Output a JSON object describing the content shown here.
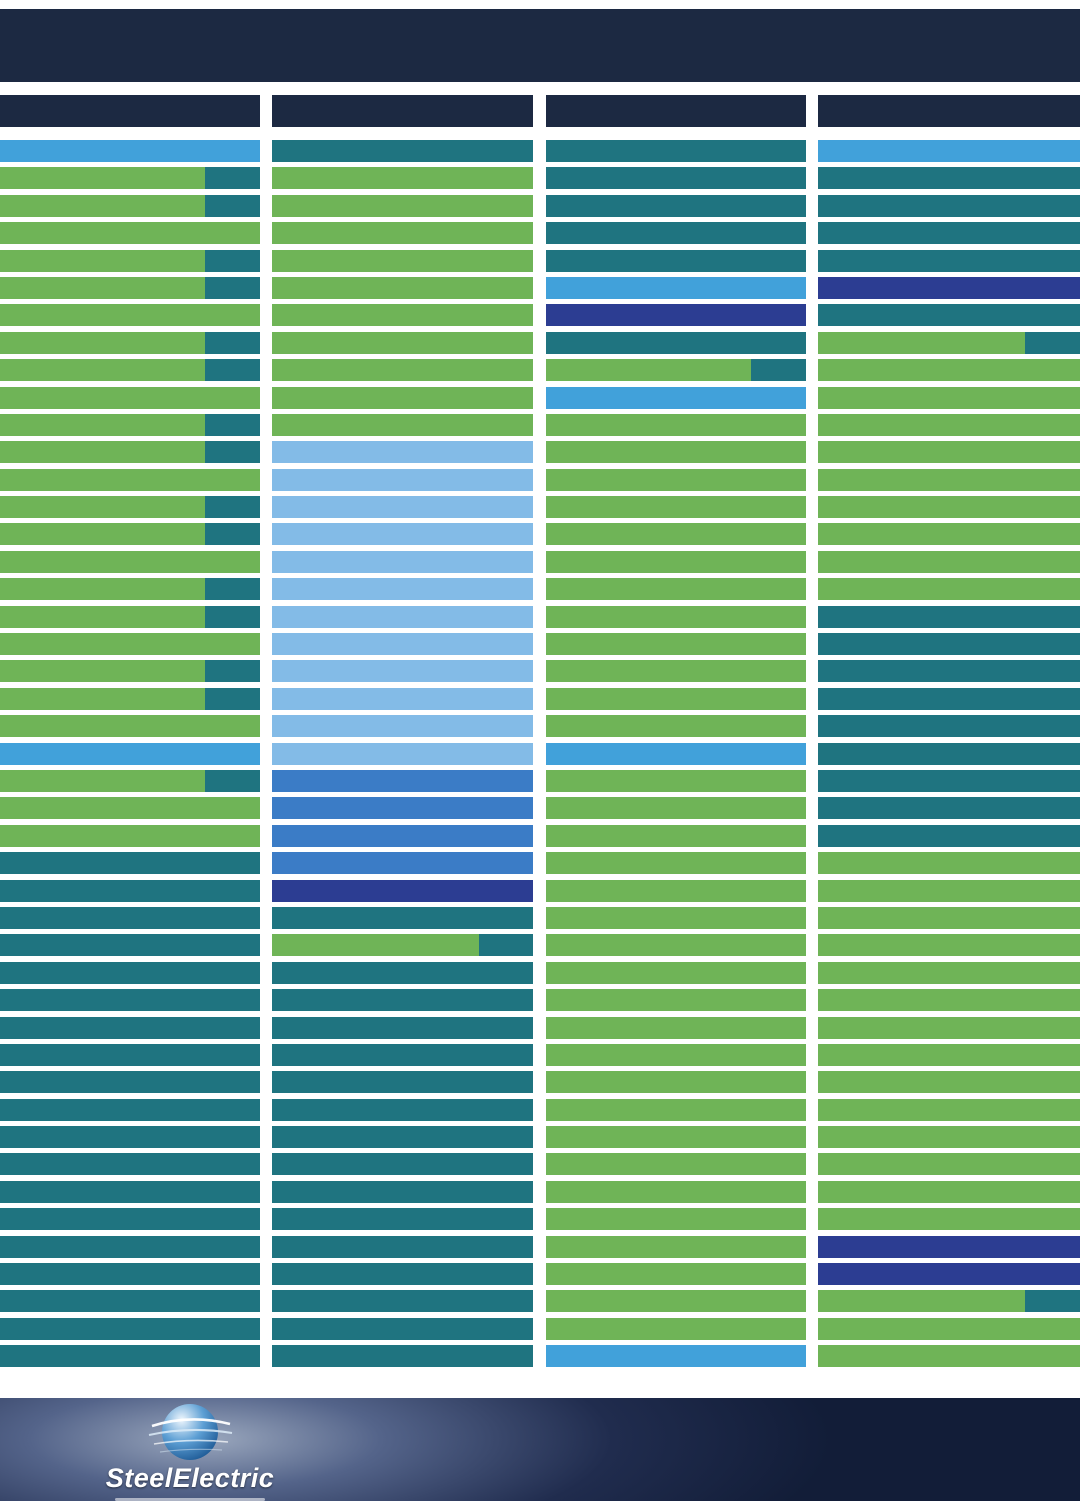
{
  "colors": {
    "page_bg": "#ffffff",
    "navy": "#1c2942",
    "green": "#6fb457",
    "teal": "#1f7480",
    "skyblue": "#41a1da",
    "lightblue": "#83bbe7",
    "blue": "#3b7cc6",
    "indigo": "#2c3d92",
    "footer_dark": "#121d38",
    "footer_glow": "#9aa7bd"
  },
  "row_types": {
    "g": "green-bar",
    "gt": "green-bar-with-teal-end",
    "t": "teal-bar",
    "sb": "sky-blue-bar",
    "lb": "light-blue-bar",
    "b": "blue-bar",
    "i": "indigo-bar"
  },
  "columns": [
    {
      "rows": [
        "sb",
        "gt",
        "gt",
        "g",
        "gt",
        "gt",
        "g",
        "gt",
        "gt",
        "g",
        "gt",
        "gt",
        "g",
        "gt",
        "gt",
        "g",
        "gt",
        "gt",
        "g",
        "gt",
        "gt",
        "g",
        "sb",
        "gt",
        "g",
        "g",
        "t",
        "t",
        "t",
        "t",
        "t",
        "t",
        "t",
        "t",
        "t",
        "t",
        "t",
        "t",
        "t",
        "t",
        "t",
        "t",
        "t",
        "t",
        "t"
      ]
    },
    {
      "rows": [
        "t",
        "g",
        "g",
        "g",
        "g",
        "g",
        "g",
        "g",
        "g",
        "g",
        "g",
        "lb",
        "lb",
        "lb",
        "lb",
        "lb",
        "lb",
        "lb",
        "lb",
        "lb",
        "lb",
        "lb",
        "lb",
        "b",
        "b",
        "b",
        "b",
        "i",
        "t",
        "gt",
        "t",
        "t",
        "t",
        "t",
        "t",
        "t",
        "t",
        "t",
        "t",
        "t",
        "t",
        "t",
        "t",
        "t",
        "t"
      ]
    },
    {
      "rows": [
        "t",
        "t",
        "t",
        "t",
        "t",
        "sb",
        "i",
        "t",
        "gt",
        "sb",
        "g",
        "g",
        "g",
        "g",
        "g",
        "g",
        "g",
        "g",
        "g",
        "g",
        "g",
        "g",
        "sb",
        "g",
        "g",
        "g",
        "g",
        "g",
        "g",
        "g",
        "g",
        "g",
        "g",
        "g",
        "g",
        "g",
        "g",
        "g",
        "g",
        "g",
        "g",
        "g",
        "g",
        "g",
        "sb"
      ]
    },
    {
      "rows": [
        "sb",
        "t",
        "t",
        "t",
        "t",
        "i",
        "t",
        "gt",
        "g",
        "g",
        "g",
        "g",
        "g",
        "g",
        "g",
        "g",
        "g",
        "t",
        "t",
        "t",
        "t",
        "t",
        "t",
        "t",
        "t",
        "t",
        "g",
        "g",
        "g",
        "g",
        "g",
        "g",
        "g",
        "g",
        "g",
        "g",
        "g",
        "g",
        "g",
        "g",
        "i",
        "i",
        "gt",
        "g",
        "g"
      ]
    }
  ],
  "footer": {
    "brand": "SteelElectric"
  }
}
